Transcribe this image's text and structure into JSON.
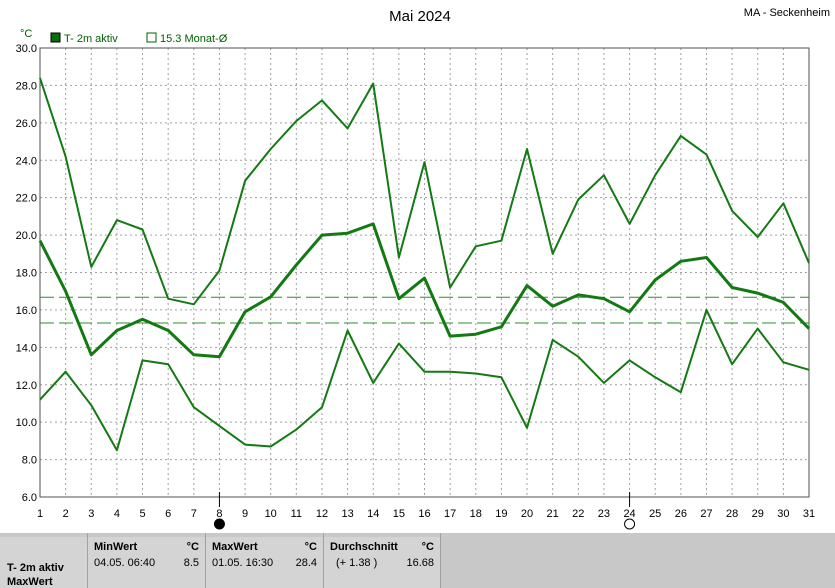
{
  "header": {
    "title": "Mai 2024",
    "station": "MA - Seckenheim",
    "unit": "°C"
  },
  "legend": {
    "series_label": "T- 2m aktiv",
    "mean_label": "15.3 Monat-Ø"
  },
  "colors": {
    "line": "#137a13",
    "dash": "#2e8b2e",
    "legend_fill": "#0a6e0a",
    "grid": "#a0a0a0",
    "axis": "#505050"
  },
  "chart_data": {
    "type": "line",
    "title": "Mai 2024",
    "ylabel": "°C",
    "x": [
      1,
      2,
      3,
      4,
      5,
      6,
      7,
      8,
      9,
      10,
      11,
      12,
      13,
      14,
      15,
      16,
      17,
      18,
      19,
      20,
      21,
      22,
      23,
      24,
      25,
      26,
      27,
      28,
      29,
      30,
      31
    ],
    "ylim": [
      6.0,
      30.0
    ],
    "yticks": [
      "6.0",
      "8.0",
      "10.0",
      "12.0",
      "14.0",
      "16.0",
      "18.0",
      "20.0",
      "22.0",
      "24.0",
      "26.0",
      "28.0",
      "30.0"
    ],
    "series": [
      {
        "name": "T- 2m aktiv",
        "role": "mean",
        "width": 3,
        "values": [
          19.7,
          17.0,
          13.6,
          14.9,
          15.5,
          14.9,
          13.6,
          13.5,
          15.9,
          16.7,
          18.4,
          20.0,
          20.1,
          20.6,
          16.6,
          17.7,
          14.6,
          14.7,
          15.1,
          17.3,
          16.2,
          16.8,
          16.6,
          15.9,
          17.6,
          18.6,
          18.8,
          17.2,
          16.9,
          16.4,
          15.0
        ]
      },
      {
        "role": "max",
        "width": 2,
        "values": [
          28.4,
          24.2,
          18.3,
          20.8,
          20.3,
          16.6,
          16.3,
          18.1,
          22.9,
          24.6,
          26.1,
          27.2,
          25.7,
          28.1,
          18.8,
          23.9,
          17.2,
          19.4,
          19.7,
          24.6,
          19.0,
          21.9,
          23.2,
          20.6,
          23.2,
          25.3,
          24.3,
          21.3,
          19.9,
          21.7,
          18.5
        ]
      },
      {
        "role": "min",
        "width": 2,
        "values": [
          11.2,
          12.7,
          10.9,
          8.5,
          13.3,
          13.1,
          10.8,
          9.8,
          8.8,
          8.7,
          9.6,
          10.8,
          14.9,
          12.1,
          14.2,
          12.7,
          12.7,
          12.6,
          12.4,
          9.7,
          14.4,
          13.5,
          12.1,
          13.3,
          12.4,
          11.6,
          16.0,
          13.1,
          15.0,
          13.2,
          12.8
        ]
      }
    ],
    "reference_lines": [
      {
        "value": 16.68,
        "style": "dashed"
      },
      {
        "value": 15.3,
        "style": "dashed"
      }
    ],
    "markers": [
      {
        "day": 8,
        "symbol": "full-moon",
        "filled": true
      },
      {
        "day": 24,
        "symbol": "new-moon",
        "filled": false
      }
    ]
  },
  "footer": {
    "row_label_1": "T- 2m aktiv",
    "row_label_2": "MaxWert",
    "min": {
      "header": "MinWert",
      "unit": "°C",
      "datetime": "04.05.  06:40",
      "value": "8.5"
    },
    "max": {
      "header": "MaxWert",
      "unit": "°C",
      "datetime": "01.05.  16:30",
      "value": "28.4"
    },
    "avg": {
      "header": "Durchschnitt",
      "unit": "°C",
      "delta": "(+ 1.38 )",
      "value": "16.68"
    }
  }
}
